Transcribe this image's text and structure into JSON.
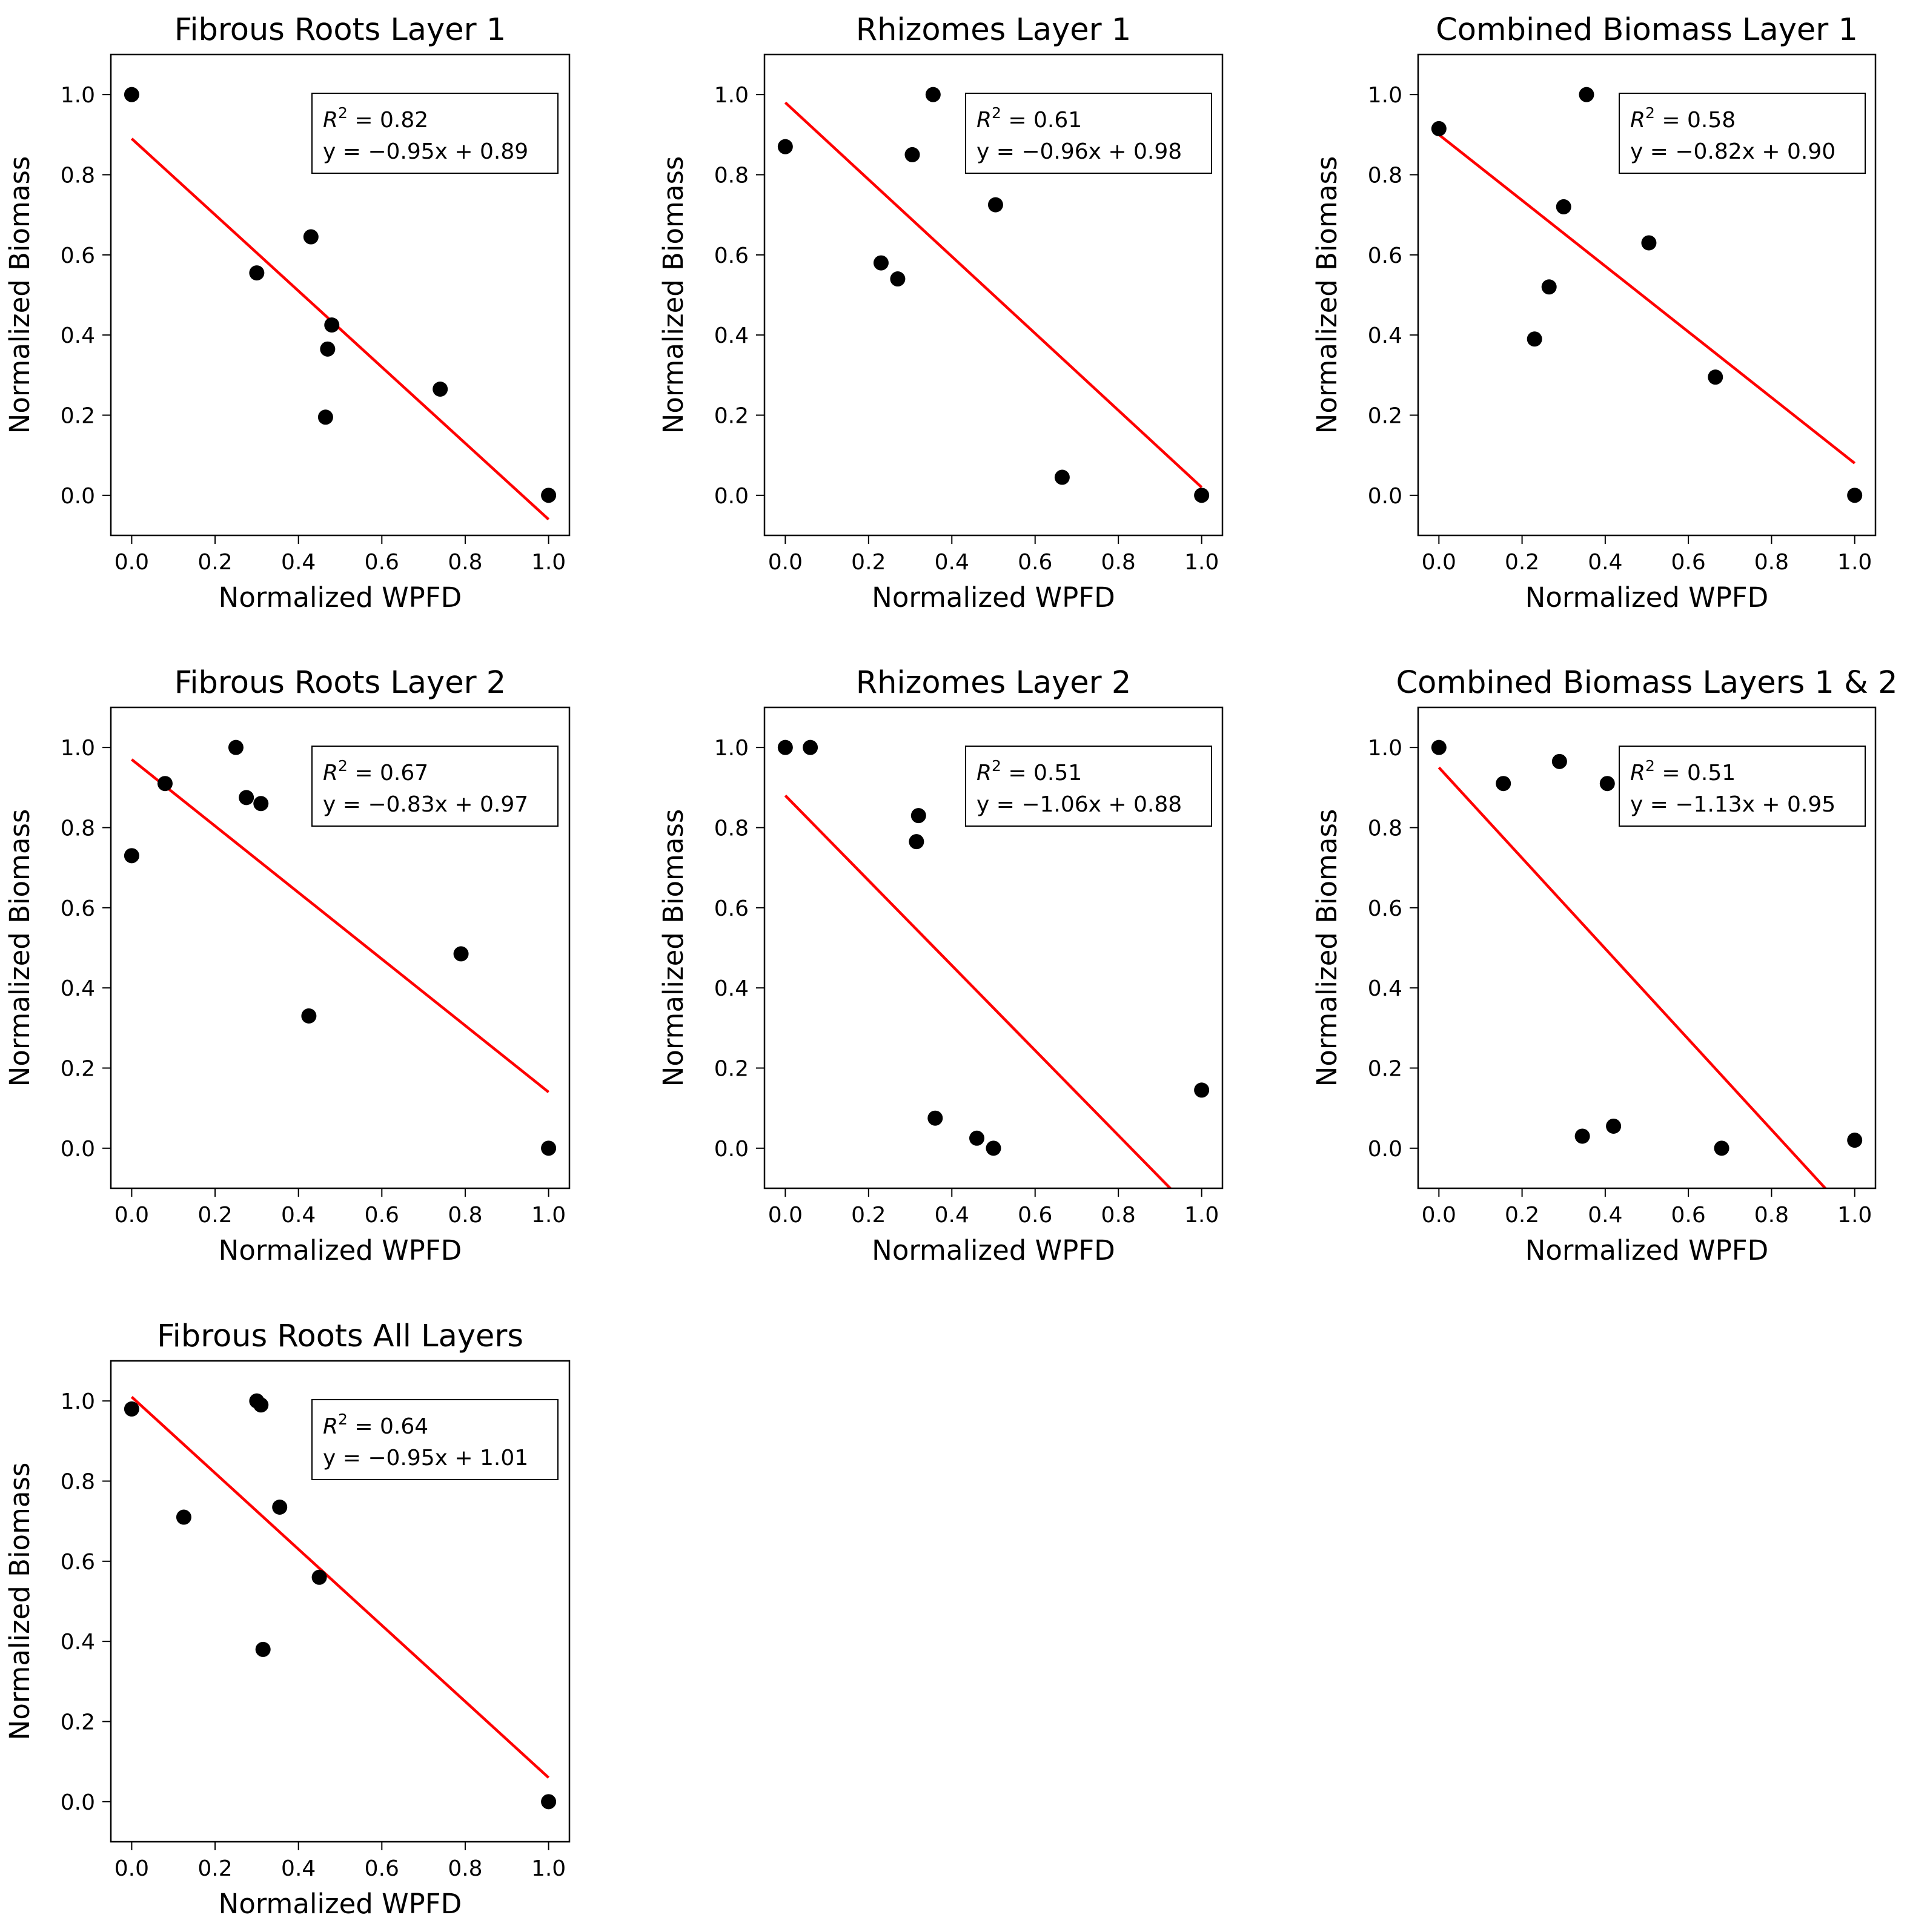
{
  "figure": {
    "line_color": "#ff0000",
    "point_color": "#000000",
    "frame_color": "#000000"
  },
  "chart_data": [
    {
      "type": "scatter",
      "title": "Fibrous Roots Layer 1",
      "xlabel": "Normalized WPFD",
      "ylabel": "Normalized Biomass",
      "xlim": [
        -0.05,
        1.05
      ],
      "ylim": [
        -0.1,
        1.1
      ],
      "xticks": [
        0.0,
        0.2,
        0.4,
        0.6,
        0.8,
        1.0
      ],
      "yticks": [
        0.0,
        0.2,
        0.4,
        0.6,
        0.8,
        1.0
      ],
      "x": [
        0.0,
        0.3,
        0.43,
        0.48,
        0.47,
        0.465,
        0.74,
        1.0
      ],
      "y": [
        1.0,
        0.555,
        0.645,
        0.425,
        0.365,
        0.195,
        0.265,
        0.0
      ],
      "fit": {
        "slope": -0.95,
        "intercept": 0.89
      },
      "r2_label": "0.82",
      "equation": "y = −0.95x + 0.89"
    },
    {
      "type": "scatter",
      "title": "Rhizomes Layer 1",
      "xlabel": "Normalized WPFD",
      "ylabel": "Normalized Biomass",
      "xlim": [
        -0.05,
        1.05
      ],
      "ylim": [
        -0.1,
        1.1
      ],
      "xticks": [
        0.0,
        0.2,
        0.4,
        0.6,
        0.8,
        1.0
      ],
      "yticks": [
        0.0,
        0.2,
        0.4,
        0.6,
        0.8,
        1.0
      ],
      "x": [
        0.0,
        0.355,
        0.305,
        0.23,
        0.27,
        0.505,
        0.665,
        1.0
      ],
      "y": [
        0.87,
        1.0,
        0.85,
        0.58,
        0.54,
        0.725,
        0.045,
        0.0
      ],
      "fit": {
        "slope": -0.96,
        "intercept": 0.98
      },
      "r2_label": "0.61",
      "equation": "y = −0.96x + 0.98"
    },
    {
      "type": "scatter",
      "title": "Combined Biomass Layer 1",
      "xlabel": "Normalized WPFD",
      "ylabel": "Normalized Biomass",
      "xlim": [
        -0.05,
        1.05
      ],
      "ylim": [
        -0.1,
        1.1
      ],
      "xticks": [
        0.0,
        0.2,
        0.4,
        0.6,
        0.8,
        1.0
      ],
      "yticks": [
        0.0,
        0.2,
        0.4,
        0.6,
        0.8,
        1.0
      ],
      "x": [
        0.0,
        0.355,
        0.3,
        0.265,
        0.23,
        0.505,
        0.665,
        1.0
      ],
      "y": [
        0.915,
        1.0,
        0.72,
        0.52,
        0.39,
        0.63,
        0.295,
        0.0
      ],
      "fit": {
        "slope": -0.82,
        "intercept": 0.9
      },
      "r2_label": "0.58",
      "equation": "y = −0.82x + 0.90"
    },
    {
      "type": "scatter",
      "title": "Fibrous Roots Layer 2",
      "xlabel": "Normalized WPFD",
      "ylabel": "Normalized Biomass",
      "xlim": [
        -0.05,
        1.05
      ],
      "ylim": [
        -0.1,
        1.1
      ],
      "xticks": [
        0.0,
        0.2,
        0.4,
        0.6,
        0.8,
        1.0
      ],
      "yticks": [
        0.0,
        0.2,
        0.4,
        0.6,
        0.8,
        1.0
      ],
      "x": [
        0.0,
        0.08,
        0.25,
        0.275,
        0.31,
        0.425,
        0.79,
        1.0
      ],
      "y": [
        0.73,
        0.91,
        1.0,
        0.875,
        0.86,
        0.33,
        0.485,
        0.0
      ],
      "fit": {
        "slope": -0.83,
        "intercept": 0.97
      },
      "r2_label": "0.67",
      "equation": "y = −0.83x + 0.97"
    },
    {
      "type": "scatter",
      "title": "Rhizomes Layer 2",
      "xlabel": "Normalized WPFD",
      "ylabel": "Normalized Biomass",
      "xlim": [
        -0.05,
        1.05
      ],
      "ylim": [
        -0.1,
        1.1
      ],
      "xticks": [
        0.0,
        0.2,
        0.4,
        0.6,
        0.8,
        1.0
      ],
      "yticks": [
        0.0,
        0.2,
        0.4,
        0.6,
        0.8,
        1.0
      ],
      "x": [
        0.0,
        0.06,
        0.32,
        0.315,
        0.36,
        0.46,
        0.5,
        1.0
      ],
      "y": [
        1.0,
        1.0,
        0.83,
        0.765,
        0.075,
        0.025,
        0.0,
        0.145
      ],
      "fit": {
        "slope": -1.06,
        "intercept": 0.88
      },
      "r2_label": "0.51",
      "equation": "y = −1.06x + 0.88"
    },
    {
      "type": "scatter",
      "title": "Combined Biomass Layers 1 & 2",
      "xlabel": "Normalized WPFD",
      "ylabel": "Normalized Biomass",
      "xlim": [
        -0.05,
        1.05
      ],
      "ylim": [
        -0.1,
        1.1
      ],
      "xticks": [
        0.0,
        0.2,
        0.4,
        0.6,
        0.8,
        1.0
      ],
      "yticks": [
        0.0,
        0.2,
        0.4,
        0.6,
        0.8,
        1.0
      ],
      "x": [
        0.0,
        0.155,
        0.29,
        0.405,
        0.345,
        0.42,
        0.68,
        1.0
      ],
      "y": [
        1.0,
        0.91,
        0.965,
        0.91,
        0.03,
        0.055,
        0.0,
        0.02
      ],
      "fit": {
        "slope": -1.13,
        "intercept": 0.95
      },
      "r2_label": "0.51",
      "equation": "y = −1.13x + 0.95"
    },
    {
      "type": "scatter",
      "title": "Fibrous Roots All Layers",
      "xlabel": "Normalized WPFD",
      "ylabel": "Normalized Biomass",
      "xlim": [
        -0.05,
        1.05
      ],
      "ylim": [
        -0.1,
        1.1
      ],
      "xticks": [
        0.0,
        0.2,
        0.4,
        0.6,
        0.8,
        1.0
      ],
      "yticks": [
        0.0,
        0.2,
        0.4,
        0.6,
        0.8,
        1.0
      ],
      "x": [
        0.0,
        0.3,
        0.31,
        0.125,
        0.355,
        0.45,
        0.315,
        1.0
      ],
      "y": [
        0.98,
        1.0,
        0.99,
        0.71,
        0.735,
        0.56,
        0.38,
        0.0
      ],
      "fit": {
        "slope": -0.95,
        "intercept": 1.01
      },
      "r2_label": "0.64",
      "equation": "y = −0.95x + 1.01"
    }
  ]
}
